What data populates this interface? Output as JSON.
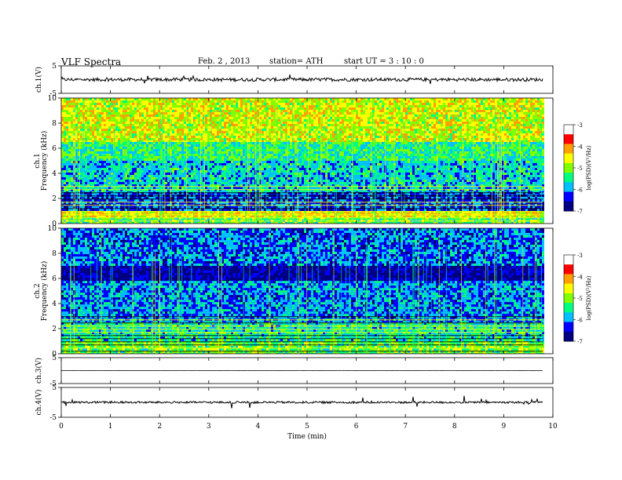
{
  "header": {
    "title": "VLF  Spectra",
    "date": "Feb. 2  , 2013",
    "station": "station= ATH",
    "start": "start  UT  =   3  : 10 : 0"
  },
  "chart_data": {
    "type": "heatmap",
    "xlabel": "Time  (min)",
    "xlim": [
      0,
      10
    ],
    "x_ticks": [
      0,
      1,
      2,
      3,
      4,
      5,
      6,
      7,
      8,
      9,
      10
    ],
    "data_end_min": 9.8,
    "panels": [
      {
        "type": "line",
        "ylabel": "ch.1(V)",
        "ylim": [
          -5,
          5
        ],
        "y_ticks": [
          5,
          -5
        ],
        "baseline": 0,
        "noise_amplitude": 0.6
      },
      {
        "type": "heatmap",
        "ylabel_top": "ch.1",
        "ylabel": "Frequency  (kHz)",
        "ylim": [
          0,
          10
        ],
        "y_ticks": [
          0,
          2,
          4,
          6,
          8,
          10
        ],
        "bands": [
          {
            "from_khz": 6.5,
            "to_khz": 10,
            "level": -4.4
          },
          {
            "from_khz": 5.0,
            "to_khz": 6.5,
            "level": -5.2
          },
          {
            "from_khz": 2.5,
            "to_khz": 5.0,
            "level": -5.6
          },
          {
            "from_khz": 1.0,
            "to_khz": 2.5,
            "level": -6.2
          },
          {
            "from_khz": 0.5,
            "to_khz": 1.0,
            "level": -4.2
          },
          {
            "from_khz": 0.0,
            "to_khz": 0.5,
            "level": -5.0
          }
        ]
      },
      {
        "type": "heatmap",
        "ylabel_top": "ch.2",
        "ylabel": "Frequency  (kHz)",
        "ylim": [
          0,
          10
        ],
        "y_ticks": [
          0,
          2,
          4,
          6,
          8,
          10
        ],
        "bands": [
          {
            "from_khz": 7.0,
            "to_khz": 10,
            "level": -6.0
          },
          {
            "from_khz": 5.8,
            "to_khz": 7.0,
            "level": -6.7
          },
          {
            "from_khz": 2.5,
            "to_khz": 5.8,
            "level": -5.9
          },
          {
            "from_khz": 1.0,
            "to_khz": 2.5,
            "level": -5.4
          },
          {
            "from_khz": 0.0,
            "to_khz": 1.0,
            "level": -4.9
          }
        ]
      },
      {
        "type": "line",
        "ylabel": "ch.3(V)",
        "ylim": [
          -5,
          5
        ],
        "y_ticks": [
          5,
          -5
        ],
        "baseline": 0,
        "noise_amplitude": 0.05
      },
      {
        "type": "line",
        "ylabel": "ch.4(V)",
        "ylim": [
          -5,
          5
        ],
        "y_ticks": [
          5,
          -5
        ],
        "baseline": 0,
        "noise_amplitude": 0.35
      }
    ],
    "colorbar": {
      "label": "log(PSD)(V²/Hz)",
      "range": [
        -7,
        -3
      ],
      "ticks": [
        -3,
        -4,
        -5,
        -6,
        -7
      ],
      "colors": [
        "#000080",
        "#0000ff",
        "#00c0ff",
        "#00ff80",
        "#80ff00",
        "#ffff00",
        "#ffa000",
        "#ff0000",
        "#ffffff"
      ]
    }
  }
}
